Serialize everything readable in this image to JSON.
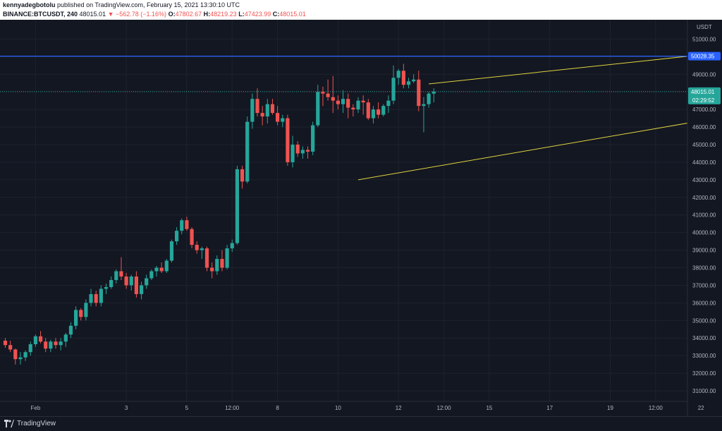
{
  "header": {
    "author": "kennyadegbotolu",
    "published": "published on TradingView.com, February 15, 2021 13:30:10 UTC",
    "symbol": "BINANCE:BTCUSDT, 240",
    "last": "48015.01",
    "change": "▼ −562.78 (−1.16%)",
    "o_label": "O:",
    "o_value": "47802.67",
    "h_label": "H:",
    "h_value": "48219.23",
    "l_label": "L:",
    "l_value": "47423.99",
    "c_label": "C:",
    "c_value": "48015.01"
  },
  "footer": {
    "brand": "TradingView"
  },
  "colors": {
    "background": "#131722",
    "up": "#26a69a",
    "down": "#ef5350",
    "trendline": "#e0d43e",
    "hline": "#2962ff",
    "price_line": "#26a69a"
  },
  "chart_data": {
    "type": "candlestick",
    "currency": "USDT",
    "ylim": [
      30400,
      52100
    ],
    "y_ticks": [
      31000,
      32000,
      33000,
      34000,
      35000,
      36000,
      37000,
      38000,
      39000,
      40000,
      41000,
      42000,
      43000,
      44000,
      45000,
      46000,
      47000,
      48000,
      49000,
      50000,
      51000
    ],
    "y_tick_labels": [
      "31000.00",
      "32000.00",
      "33000.00",
      "34000.00",
      "35000.00",
      "36000.00",
      "37000.00",
      "38000.00",
      "39000.00",
      "40000.00",
      "41000.00",
      "42000.00",
      "43000.00",
      "44000.00",
      "45000.00",
      "46000.00",
      "47000.00",
      "48000.00",
      "49000.00",
      "50000.00",
      "51000.00"
    ],
    "x_ticks": [
      {
        "bar": 6,
        "label": "Feb"
      },
      {
        "bar": 24,
        "label": "3"
      },
      {
        "bar": 36,
        "label": "5"
      },
      {
        "bar": 45,
        "label": "12:00"
      },
      {
        "bar": 54,
        "label": "8"
      },
      {
        "bar": 66,
        "label": "10"
      },
      {
        "bar": 78,
        "label": "12"
      },
      {
        "bar": 87,
        "label": "12:00"
      },
      {
        "bar": 96,
        "label": "15"
      },
      {
        "bar": 108,
        "label": "17"
      },
      {
        "bar": 120,
        "label": "19"
      },
      {
        "bar": 129,
        "label": "12:00"
      },
      {
        "bar": 138,
        "label": "22"
      }
    ],
    "candles": [
      [
        33850,
        34000,
        33450,
        33600
      ],
      [
        33600,
        33850,
        33200,
        33350
      ],
      [
        33350,
        33400,
        32500,
        32800
      ],
      [
        32800,
        33200,
        32500,
        32900
      ],
      [
        32900,
        33300,
        32700,
        33200
      ],
      [
        33200,
        33800,
        33000,
        33650
      ],
      [
        33650,
        34200,
        33500,
        34100
      ],
      [
        34100,
        34400,
        33700,
        33800
      ],
      [
        33800,
        34000,
        33200,
        33400
      ],
      [
        33400,
        33900,
        33200,
        33800
      ],
      [
        33800,
        34000,
        33400,
        33600
      ],
      [
        33600,
        34000,
        33300,
        33800
      ],
      [
        33800,
        34300,
        33500,
        34200
      ],
      [
        34200,
        34900,
        34000,
        34700
      ],
      [
        34700,
        35800,
        34500,
        35600
      ],
      [
        35600,
        35700,
        35000,
        35200
      ],
      [
        35200,
        36200,
        35000,
        36000
      ],
      [
        36000,
        36800,
        35800,
        36500
      ],
      [
        36500,
        36700,
        35800,
        36000
      ],
      [
        36000,
        37000,
        35800,
        36800
      ],
      [
        36800,
        37100,
        36500,
        36900
      ],
      [
        36900,
        37500,
        36800,
        37300
      ],
      [
        37300,
        37900,
        37100,
        37800
      ],
      [
        37800,
        38600,
        37300,
        37500
      ],
      [
        37500,
        37700,
        36800,
        37000
      ],
      [
        37000,
        37600,
        36700,
        37500
      ],
      [
        37500,
        37800,
        36300,
        36500
      ],
      [
        36500,
        37200,
        36200,
        37000
      ],
      [
        37000,
        37600,
        36800,
        37400
      ],
      [
        37400,
        37900,
        37300,
        37800
      ],
      [
        37800,
        38100,
        37500,
        38000
      ],
      [
        38000,
        38300,
        37700,
        37800
      ],
      [
        37800,
        38500,
        37700,
        38400
      ],
      [
        38400,
        39600,
        38300,
        39500
      ],
      [
        39500,
        40300,
        39300,
        40100
      ],
      [
        40100,
        40800,
        39900,
        40700
      ],
      [
        40700,
        40900,
        40100,
        40200
      ],
      [
        40200,
        40300,
        39100,
        39300
      ],
      [
        39300,
        39500,
        38800,
        39000
      ],
      [
        39000,
        39200,
        38500,
        39100
      ],
      [
        39100,
        39200,
        37800,
        38000
      ],
      [
        38000,
        38300,
        37400,
        37800
      ],
      [
        37800,
        38700,
        37600,
        38500
      ],
      [
        38500,
        39000,
        37800,
        38000
      ],
      [
        38000,
        39300,
        37900,
        39100
      ],
      [
        39100,
        39600,
        38900,
        39400
      ],
      [
        39400,
        43800,
        39300,
        43600
      ],
      [
        43600,
        43800,
        42500,
        42900
      ],
      [
        42900,
        46600,
        42800,
        46300
      ],
      [
        46300,
        47900,
        45900,
        47600
      ],
      [
        47600,
        48200,
        46600,
        46800
      ],
      [
        46800,
        47200,
        46100,
        46600
      ],
      [
        46600,
        47600,
        46200,
        47300
      ],
      [
        47300,
        47600,
        46700,
        46800
      ],
      [
        46800,
        47200,
        46100,
        46300
      ],
      [
        46300,
        46700,
        46000,
        46500
      ],
      [
        46500,
        46700,
        43800,
        44000
      ],
      [
        44000,
        45500,
        43700,
        45000
      ],
      [
        45000,
        45200,
        44300,
        44500
      ],
      [
        44500,
        44900,
        44200,
        44700
      ],
      [
        44700,
        44900,
        44200,
        44600
      ],
      [
        44600,
        46300,
        44400,
        46100
      ],
      [
        46100,
        48400,
        46000,
        48000
      ],
      [
        48000,
        48300,
        47200,
        47900
      ],
      [
        47900,
        48700,
        47500,
        47700
      ],
      [
        47700,
        48900,
        46800,
        47500
      ],
      [
        47500,
        47800,
        47000,
        47300
      ],
      [
        47300,
        48100,
        46800,
        47600
      ],
      [
        47600,
        47900,
        46500,
        47100
      ],
      [
        47100,
        47300,
        46600,
        47000
      ],
      [
        47000,
        47700,
        46800,
        47500
      ],
      [
        47500,
        47800,
        46700,
        47400
      ],
      [
        47400,
        47600,
        46400,
        46500
      ],
      [
        46500,
        47200,
        46200,
        47000
      ],
      [
        47000,
        47400,
        46500,
        46700
      ],
      [
        46700,
        47300,
        46600,
        47200
      ],
      [
        47200,
        47800,
        46800,
        47500
      ],
      [
        47500,
        49500,
        47300,
        48800
      ],
      [
        48800,
        49300,
        48400,
        49200
      ],
      [
        49200,
        49600,
        48200,
        48400
      ],
      [
        48400,
        48800,
        48200,
        48600
      ],
      [
        48600,
        49000,
        48500,
        48700
      ],
      [
        48700,
        49200,
        46900,
        47200
      ],
      [
        47200,
        47700,
        45700,
        47300
      ],
      [
        47300,
        48000,
        47100,
        47900
      ],
      [
        47900,
        48200,
        47400,
        48015
      ]
    ],
    "trendlines": [
      {
        "name": "upper",
        "from": [
          84,
          48450
        ],
        "to": [
          178,
          51330
        ]
      },
      {
        "name": "lower",
        "from": [
          70,
          43000
        ],
        "to": [
          175,
          48180
        ]
      }
    ],
    "horizontal_line": {
      "value": 50028.35,
      "label": "50028.35"
    },
    "last_price": {
      "value": 48015.01,
      "label": "48015.01",
      "countdown": "02:29:52"
    }
  }
}
